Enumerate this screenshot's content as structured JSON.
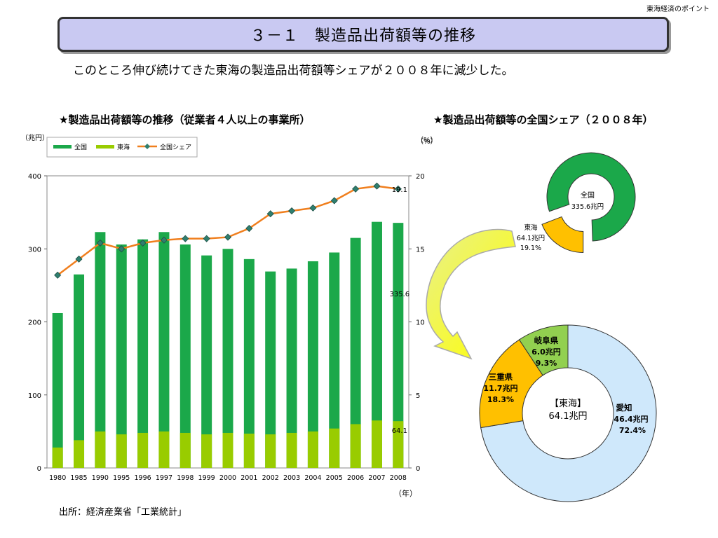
{
  "header": {
    "corner_note": "東海経済のポイント",
    "title": "３－１　製造品出荷額等の推移",
    "subtitle": "このところ伸び続けてきた東海の製造品出荷額等シェアが２００８年に減少した。"
  },
  "source": "出所：経済産業省「工業統計」",
  "colors": {
    "national": "#1ba84a",
    "tokai": "#99cc00",
    "share_line": "#f07f1e",
    "share_marker": "#2f7f6f",
    "aichi": "#cfe8fb",
    "mie": "#ffc000",
    "gifu": "#92d050",
    "donut_green": "#1ba84a",
    "donut_yellow": "#ffc000"
  },
  "chart_data": [
    {
      "type": "bar",
      "title": "★製造品出荷額等の推移（従業者４人以上の事業所）",
      "ylabel": "（兆円）",
      "y2label": "（%）",
      "xlabel": "（年）",
      "categories": [
        "1980",
        "1985",
        "1990",
        "1995",
        "1996",
        "1997",
        "1998",
        "1999",
        "2000",
        "2001",
        "2002",
        "2003",
        "2004",
        "2005",
        "2006",
        "2007",
        "2008"
      ],
      "ylim": [
        0,
        400
      ],
      "yticks": [
        "0",
        "100",
        "200",
        "300",
        "400"
      ],
      "y2lim": [
        0,
        20
      ],
      "y2ticks": [
        "0",
        "5",
        "10",
        "15",
        "20"
      ],
      "legend": [
        "全国",
        "東海",
        "全国シェア"
      ],
      "legend_position": "top-left",
      "series": [
        {
          "name": "全国",
          "kind": "bar",
          "values": [
            212,
            265,
            323,
            306,
            313,
            323,
            306,
            291,
            300,
            286,
            269,
            273,
            283,
            295,
            315,
            337,
            335.6
          ]
        },
        {
          "name": "東海",
          "kind": "bar",
          "values": [
            28,
            38,
            50,
            46,
            48,
            50,
            48,
            46,
            48,
            47,
            46,
            48,
            50,
            54,
            60,
            65,
            64.1
          ]
        },
        {
          "name": "全国シェア",
          "kind": "line",
          "axis": "right",
          "values": [
            13.2,
            14.3,
            15.4,
            15.0,
            15.4,
            15.6,
            15.7,
            15.7,
            15.8,
            16.4,
            17.4,
            17.6,
            17.8,
            18.3,
            19.1,
            19.3,
            19.1
          ]
        }
      ],
      "annotations": [
        {
          "text": "19.1",
          "x": "2008",
          "axis": "right",
          "value": 19.1
        },
        {
          "text": "335.6",
          "x": "2008",
          "axis": "left",
          "value": 335.6
        },
        {
          "text": "64.1",
          "x": "2008",
          "axis": "left",
          "value": 64.1
        }
      ]
    },
    {
      "type": "pie",
      "title": "★製造品出荷額等の全国シェア（２００８年）",
      "ylabel": "",
      "unit": "（%）",
      "slices": [
        {
          "label": "全国",
          "value_text": "335.6兆円",
          "share": 80.9
        },
        {
          "label": "東海",
          "value_text": "64.1兆円",
          "percent_text": "19.1%",
          "share": 19.1
        }
      ]
    },
    {
      "type": "pie",
      "title": "",
      "center_label": "【東海】",
      "center_value": "64.1兆円",
      "slices": [
        {
          "label": "愛知",
          "value_text": "46.4兆円",
          "percent_text": "72.4%",
          "share": 72.4
        },
        {
          "label": "三重県",
          "value_text": "11.7兆円",
          "percent_text": "18.3%",
          "share": 18.3
        },
        {
          "label": "岐阜県",
          "value_text": "6.0兆円",
          "percent_text": "9.3%",
          "share": 9.3
        }
      ]
    }
  ]
}
